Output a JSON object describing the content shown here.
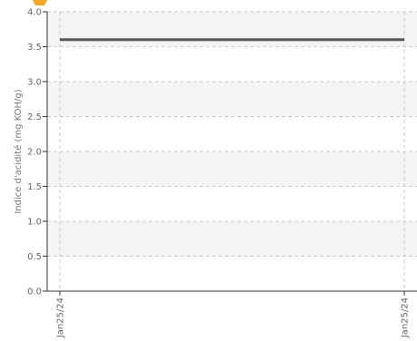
{
  "chart_data": {
    "type": "line",
    "title": "",
    "xlabel": "",
    "ylabel": "Indice d'acidité (mg KOH/g)",
    "ylim": [
      0,
      4
    ],
    "yticks": [
      0.0,
      0.5,
      1.0,
      1.5,
      2.0,
      2.5,
      3.0,
      3.5,
      4.0
    ],
    "ytick_labels": [
      "0.0",
      "0.5",
      "1.0",
      "1.5",
      "2.0",
      "2.5",
      "3.0",
      "3.5",
      "4.0"
    ],
    "x": [
      "Jan25/24",
      "Jan25/24"
    ],
    "series": [
      {
        "values": [
          3.6,
          3.6
        ]
      }
    ],
    "grid": true,
    "legend": "none",
    "colors": {
      "line": "#555555",
      "band": "#f4f4f4",
      "grid": "#cccccc",
      "axis": "#333333",
      "marker": "#f5a623"
    }
  }
}
